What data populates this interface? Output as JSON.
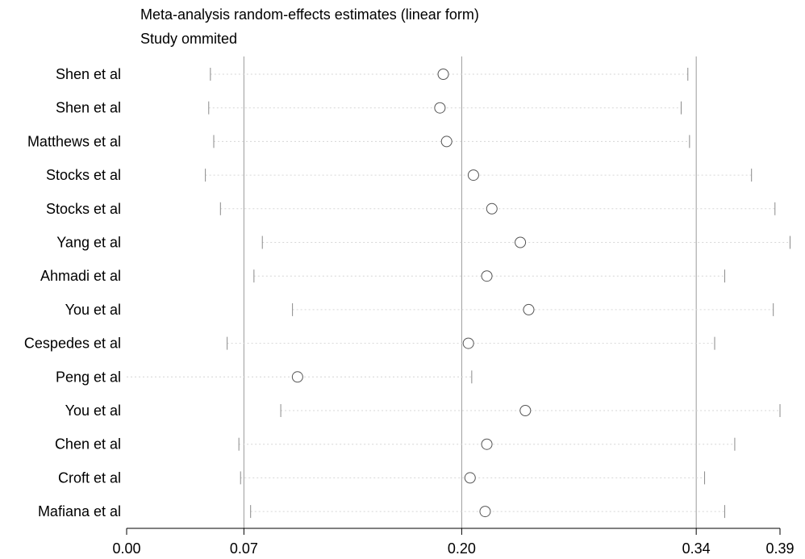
{
  "chart_data": {
    "type": "scatter",
    "title": "Meta-analysis random-effects estimates (linear form)",
    "subtitle": "Study ommited",
    "xlim": [
      0.0,
      0.39
    ],
    "xticks": [
      0.0,
      0.07,
      0.2,
      0.34,
      0.39
    ],
    "xtick_labels": [
      "0.00",
      "0.07",
      "0.20",
      "0.34",
      "0.39"
    ],
    "reference_lines": [
      0.07,
      0.2,
      0.34
    ],
    "studies": [
      {
        "label": "Shen et al",
        "estimate": 0.189,
        "lower": 0.05,
        "upper": 0.335
      },
      {
        "label": "Shen et al",
        "estimate": 0.187,
        "lower": 0.049,
        "upper": 0.331
      },
      {
        "label": "Matthews et al",
        "estimate": 0.191,
        "lower": 0.052,
        "upper": 0.336
      },
      {
        "label": "Stocks et al",
        "estimate": 0.207,
        "lower": 0.047,
        "upper": 0.373
      },
      {
        "label": "Stocks et al",
        "estimate": 0.218,
        "lower": 0.056,
        "upper": 0.387
      },
      {
        "label": "Yang et al",
        "estimate": 0.235,
        "lower": 0.081,
        "upper": 0.396
      },
      {
        "label": "Ahmadi et al",
        "estimate": 0.215,
        "lower": 0.076,
        "upper": 0.357
      },
      {
        "label": "You et al",
        "estimate": 0.24,
        "lower": 0.099,
        "upper": 0.386
      },
      {
        "label": "Cespedes et al",
        "estimate": 0.204,
        "lower": 0.06,
        "upper": 0.351
      },
      {
        "label": "Peng et al",
        "estimate": 0.102,
        "lower": null,
        "upper": 0.206
      },
      {
        "label": "You et al",
        "estimate": 0.238,
        "lower": 0.092,
        "upper": 0.39
      },
      {
        "label": "Chen et al",
        "estimate": 0.215,
        "lower": 0.067,
        "upper": 0.363
      },
      {
        "label": "Croft et al",
        "estimate": 0.205,
        "lower": 0.068,
        "upper": 0.345
      },
      {
        "label": "Mafiana et al",
        "estimate": 0.214,
        "lower": 0.074,
        "upper": 0.357
      }
    ]
  }
}
